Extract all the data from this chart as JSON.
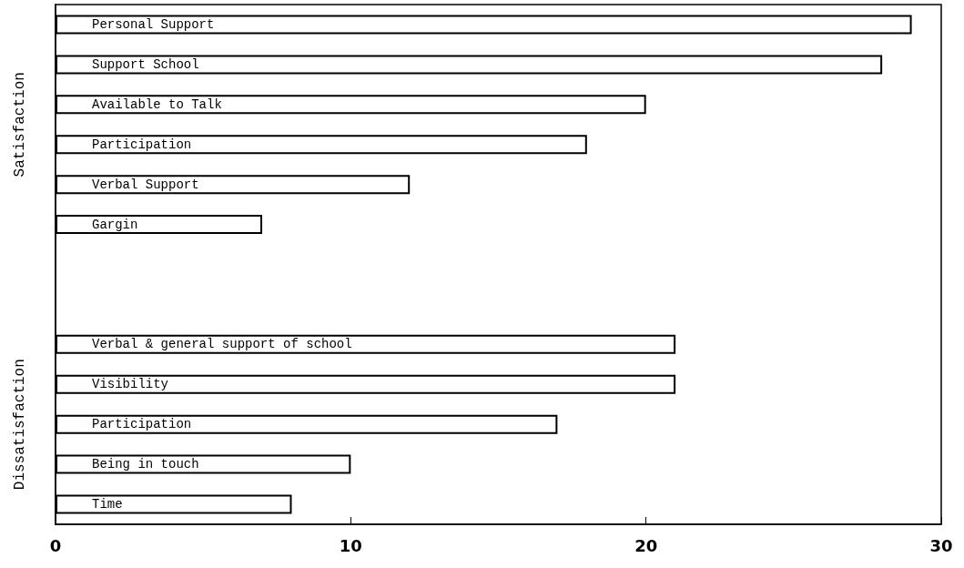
{
  "chart_data": {
    "type": "bar",
    "orientation": "horizontal",
    "categories": [
      "Personal Support",
      "Support School",
      "Available to Talk",
      "Participation",
      "Verbal Support",
      "Gargin",
      null,
      null,
      "Verbal & general support of school",
      "Visibility",
      "Participation",
      "Being in touch",
      "Time"
    ],
    "values": [
      29,
      28,
      20,
      18,
      12,
      7,
      null,
      null,
      21,
      21,
      17,
      10,
      8
    ],
    "color": "#ffffff",
    "xlim": [
      0,
      30
    ],
    "xticks": [
      0,
      10,
      20,
      30
    ],
    "annotations": [
      "Satisfaction",
      "Dissatisfaction"
    ],
    "grid": false
  }
}
